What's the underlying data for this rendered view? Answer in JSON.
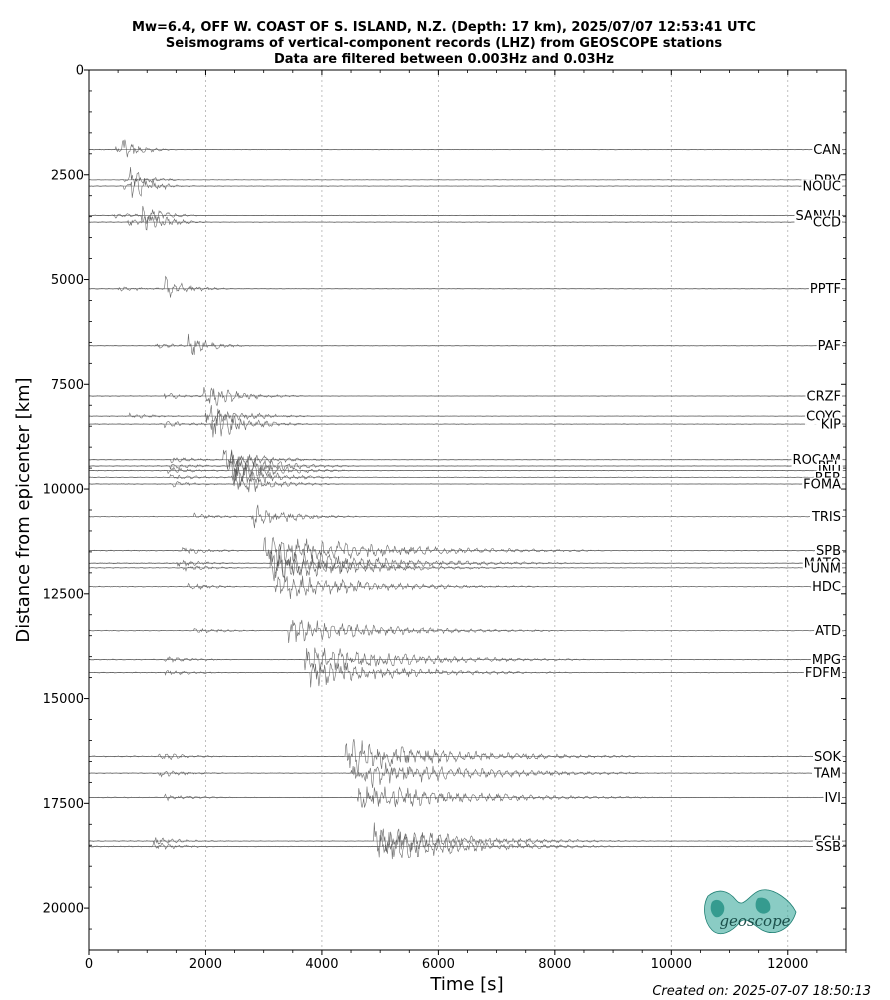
{
  "title_lines": [
    "Mw=6.4, OFF W. COAST OF S. ISLAND, N.Z. (Depth: 17 km), 2025/07/07 12:53:41 UTC",
    "Seismograms of vertical-component records (LHZ) from GEOSCOPE stations",
    "Data are filtered between 0.003Hz and 0.03Hz"
  ],
  "footer": "Created on: 2025-07-07 18:50:13",
  "logo": {
    "text": "geoscope",
    "color": "#2aa394"
  },
  "colors": {
    "trace": "#505050",
    "grid": "#b0b0b0"
  },
  "chart_data": {
    "type": "seismogram-record-section",
    "xlabel": "Time [s]",
    "ylabel": "Distance from epicenter [km]",
    "xlim": [
      0,
      13000
    ],
    "ylim": [
      0,
      21000
    ],
    "y_inverted": true,
    "x_ticks": [
      0,
      2000,
      4000,
      6000,
      8000,
      10000,
      12000
    ],
    "y_ticks": [
      0,
      2500,
      5000,
      7500,
      10000,
      12500,
      15000,
      17500,
      20000
    ],
    "x_grid": true,
    "stations": [
      {
        "name": "CAN",
        "distance": 1900,
        "p_arrival": 450,
        "s_arrival": 550,
        "end": 1100,
        "amp": 1.0,
        "density": 0.5
      },
      {
        "name": "DRV",
        "distance": 2620,
        "p_arrival": 600,
        "s_arrival": 700,
        "end": 1400,
        "amp": 0.8,
        "density": 0.5
      },
      {
        "name": "NOUC",
        "distance": 2770,
        "p_arrival": 600,
        "s_arrival": 720,
        "end": 1600,
        "amp": 1.1,
        "density": 0.6
      },
      {
        "name": "SANVU",
        "distance": 3470,
        "p_arrival": 400,
        "s_arrival": 900,
        "end": 1700,
        "amp": 1.0,
        "density": 0.6
      },
      {
        "name": "CCD",
        "distance": 3630,
        "p_arrival": 650,
        "s_arrival": 950,
        "end": 1800,
        "amp": 1.2,
        "density": 0.6
      },
      {
        "name": "PPTF",
        "distance": 5220,
        "p_arrival": 500,
        "s_arrival": 1300,
        "end": 2300,
        "amp": 1.0,
        "density": 0.5
      },
      {
        "name": "PAF",
        "distance": 6580,
        "p_arrival": 1100,
        "s_arrival": 1700,
        "end": 2600,
        "amp": 1.0,
        "density": 0.5
      },
      {
        "name": "CRZF",
        "distance": 7780,
        "p_arrival": 1300,
        "s_arrival": 1950,
        "end": 3500,
        "amp": 1.1,
        "density": 0.7
      },
      {
        "name": "COYC",
        "distance": 8260,
        "p_arrival": 700,
        "s_arrival": 2000,
        "end": 3700,
        "amp": 1.0,
        "density": 0.8
      },
      {
        "name": "KIP",
        "distance": 8450,
        "p_arrival": 1300,
        "s_arrival": 2100,
        "end": 3600,
        "amp": 1.3,
        "density": 0.8
      },
      {
        "name": "ROCAM",
        "distance": 9300,
        "p_arrival": 1400,
        "s_arrival": 2300,
        "end": 4000,
        "amp": 1.0,
        "density": 0.9
      },
      {
        "name": "PEL",
        "distance": 9450,
        "p_arrival": 1400,
        "s_arrival": 2400,
        "end": 4400,
        "amp": 1.2,
        "density": 0.9
      },
      {
        "name": "INU",
        "distance": 9560,
        "p_arrival": 1350,
        "s_arrival": 2400,
        "end": 4300,
        "amp": 1.2,
        "density": 0.9
      },
      {
        "name": "RER",
        "distance": 9720,
        "p_arrival": 1400,
        "s_arrival": 2450,
        "end": 4200,
        "amp": 1.1,
        "density": 0.9
      },
      {
        "name": "FOMA",
        "distance": 9880,
        "p_arrival": 1400,
        "s_arrival": 2500,
        "end": 4100,
        "amp": 1.1,
        "density": 0.8
      },
      {
        "name": "TRIS",
        "distance": 10660,
        "p_arrival": 1800,
        "s_arrival": 2800,
        "end": 4500,
        "amp": 1.1,
        "density": 0.7
      },
      {
        "name": "SPB",
        "distance": 11470,
        "p_arrival": 1600,
        "s_arrival": 3000,
        "end": 8500,
        "amp": 1.3,
        "density": 1.0
      },
      {
        "name": "MATO",
        "distance": 11770,
        "p_arrival": 1500,
        "s_arrival": 3100,
        "end": 8000,
        "amp": 1.3,
        "density": 1.0
      },
      {
        "name": "UNM",
        "distance": 11880,
        "p_arrival": 1600,
        "s_arrival": 3100,
        "end": 7000,
        "amp": 1.2,
        "density": 1.0
      },
      {
        "name": "HDC",
        "distance": 12330,
        "p_arrival": 1700,
        "s_arrival": 3200,
        "end": 7500,
        "amp": 1.1,
        "density": 0.9
      },
      {
        "name": "ATD",
        "distance": 13380,
        "p_arrival": 1800,
        "s_arrival": 3400,
        "end": 7800,
        "amp": 1.1,
        "density": 0.8
      },
      {
        "name": "MPG",
        "distance": 14070,
        "p_arrival": 1300,
        "s_arrival": 3700,
        "end": 8300,
        "amp": 1.2,
        "density": 0.9
      },
      {
        "name": "FDFM",
        "distance": 14380,
        "p_arrival": 1300,
        "s_arrival": 3800,
        "end": 8000,
        "amp": 1.1,
        "density": 0.9
      },
      {
        "name": "SOK",
        "distance": 16380,
        "p_arrival": 1200,
        "s_arrival": 4400,
        "end": 9200,
        "amp": 1.4,
        "density": 0.9
      },
      {
        "name": "TAM",
        "distance": 16780,
        "p_arrival": 1200,
        "s_arrival": 4500,
        "end": 9500,
        "amp": 1.3,
        "density": 0.9
      },
      {
        "name": "IVI",
        "distance": 17360,
        "p_arrival": 1300,
        "s_arrival": 4600,
        "end": 9400,
        "amp": 1.2,
        "density": 0.9
      },
      {
        "name": "ECH",
        "distance": 18400,
        "p_arrival": 1100,
        "s_arrival": 4900,
        "end": 9000,
        "amp": 1.3,
        "density": 1.0
      },
      {
        "name": "SSB",
        "distance": 18530,
        "p_arrival": 1100,
        "s_arrival": 5000,
        "end": 8800,
        "amp": 1.4,
        "density": 1.0
      }
    ]
  }
}
